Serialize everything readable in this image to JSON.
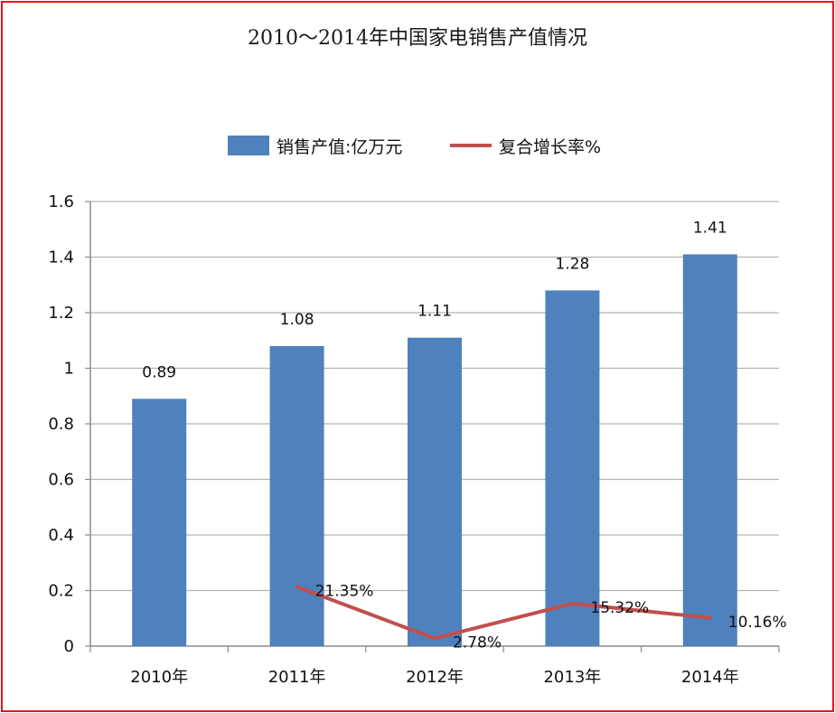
{
  "title": "2010～2014年中国家电销售产值情况",
  "legend": {
    "bar_label": "销售产值:亿万元",
    "line_label": "复合增长率%"
  },
  "colors": {
    "bar": "#4f81bd",
    "line": "#c0504d",
    "grid": "#b3b3b3",
    "border": "#e8141b"
  },
  "chart_data": {
    "type": "bar",
    "categories": [
      "2010年",
      "2011年",
      "2012年",
      "2013年",
      "2014年"
    ],
    "ylim": [
      0,
      1.6
    ],
    "yticks": [
      "0",
      "0.2",
      "0.4",
      "0.6",
      "0.8",
      "1",
      "1.2",
      "1.4",
      "1.6"
    ],
    "ytick_values": [
      0,
      0.2,
      0.4,
      0.6,
      0.8,
      1,
      1.2,
      1.4,
      1.6
    ],
    "grid": true,
    "legend_position": "top",
    "series": [
      {
        "name": "销售产值:亿万元",
        "type": "bar",
        "values": [
          0.89,
          1.08,
          1.11,
          1.28,
          1.41
        ],
        "labels": [
          "0.89",
          "1.08",
          "1.11",
          "1.28",
          "1.41"
        ]
      },
      {
        "name": "复合增长率%",
        "type": "line",
        "values": [
          null,
          0.2135,
          0.0278,
          0.1532,
          0.1016
        ],
        "labels": [
          null,
          "21.35%",
          "2.78%",
          "15.32%",
          "10.16%"
        ]
      }
    ]
  }
}
